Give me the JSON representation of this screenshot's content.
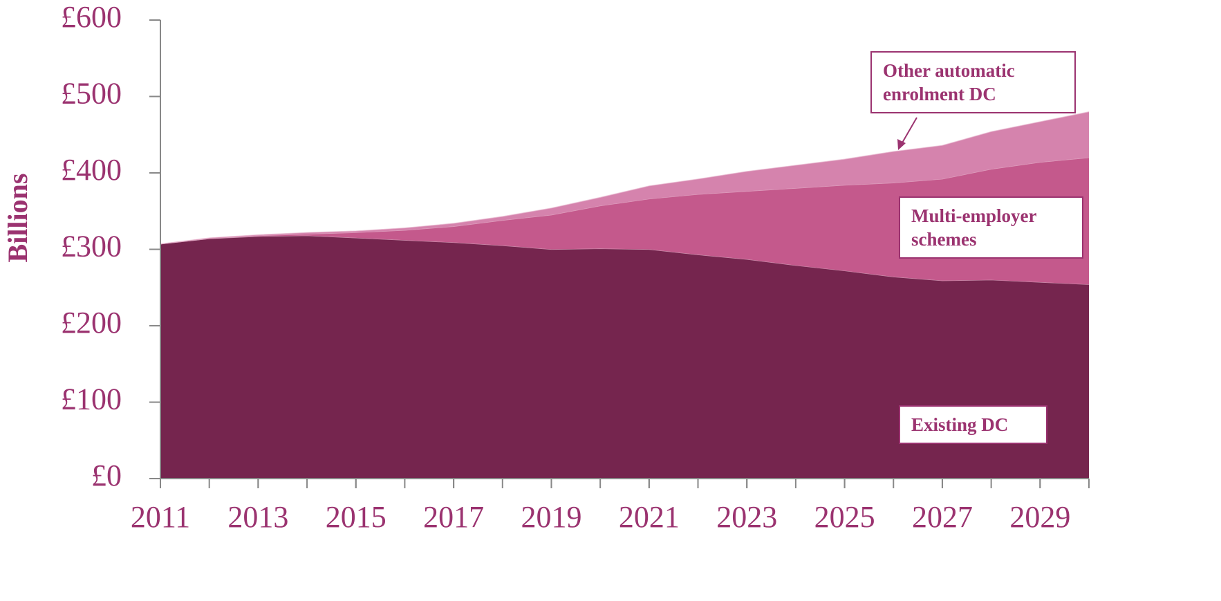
{
  "chart_data": {
    "type": "stacked_area",
    "y_label": "Billions",
    "x": [
      2011,
      2012,
      2013,
      2014,
      2015,
      2016,
      2017,
      2018,
      2019,
      2020,
      2021,
      2022,
      2023,
      2024,
      2025,
      2026,
      2027,
      2028,
      2029,
      2030
    ],
    "series": [
      {
        "name": "Existing DC",
        "color": "#75254e",
        "values": [
          307,
          314,
          317,
          318,
          315,
          312,
          309,
          305,
          300,
          301,
          300,
          293,
          287,
          279,
          272,
          264,
          259,
          260,
          257,
          254
        ]
      },
      {
        "name": "Multi-employer schemes",
        "color": "#c4598c",
        "values": [
          0,
          0,
          1,
          2,
          7,
          13,
          21,
          33,
          45,
          56,
          66,
          79,
          89,
          101,
          112,
          123,
          133,
          145,
          157,
          166
        ]
      },
      {
        "name": "Other automatic enrolment DC",
        "color": "#d583ad",
        "values": [
          0,
          1,
          1,
          2,
          2,
          3,
          4,
          5,
          9,
          11,
          17,
          20,
          26,
          30,
          34,
          41,
          44,
          49,
          53,
          60
        ]
      }
    ],
    "xlim": [
      2011,
      2030
    ],
    "xticks": [
      2011,
      2013,
      2015,
      2017,
      2019,
      2021,
      2023,
      2025,
      2027,
      2029
    ],
    "ylim": [
      0,
      600
    ],
    "yticks": [
      {
        "value": 0,
        "label": "£0"
      },
      {
        "value": 100,
        "label": "£100"
      },
      {
        "value": 200,
        "label": "£200"
      },
      {
        "value": 300,
        "label": "£300"
      },
      {
        "value": 400,
        "label": "£400"
      },
      {
        "value": 500,
        "label": "£500"
      },
      {
        "value": 600,
        "label": "£600"
      }
    ]
  }
}
